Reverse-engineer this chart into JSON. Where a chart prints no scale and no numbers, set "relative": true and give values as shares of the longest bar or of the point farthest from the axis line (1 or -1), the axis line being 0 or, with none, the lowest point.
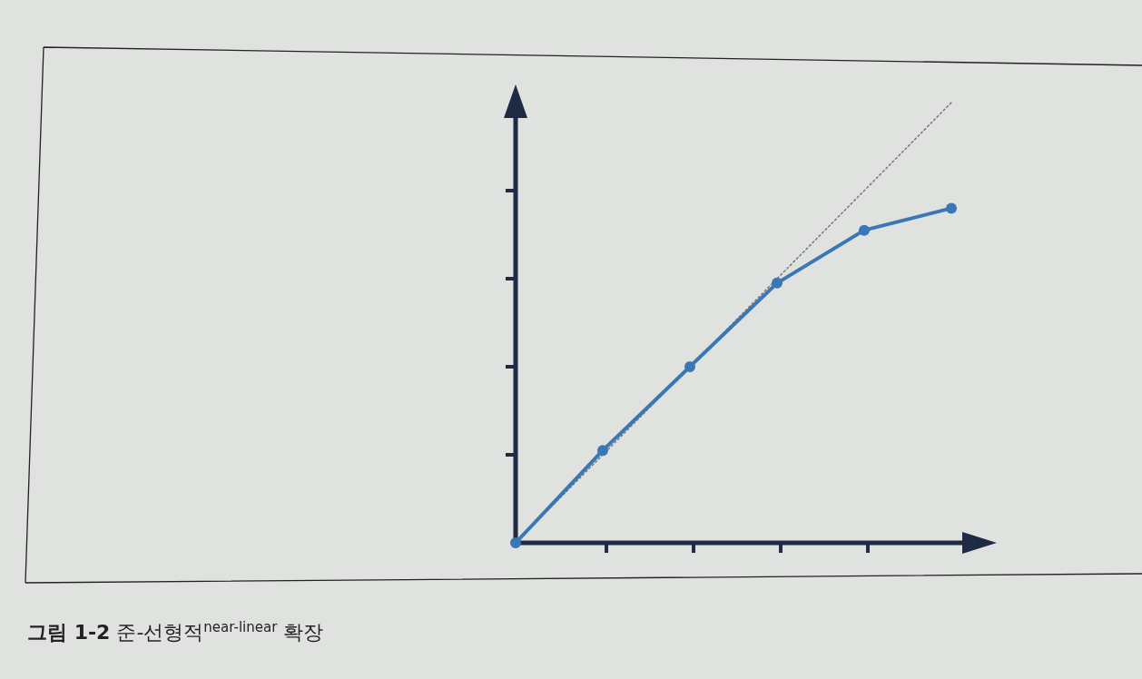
{
  "chart_data": {
    "type": "line",
    "title": "**그림 1-2** 준-선형적$^{near-linear}$ 확장",
    "categories": [
      null,
      null,
      null,
      null,
      null,
      null
    ],
    "relative": true,
    "marker": "circle",
    "line_style": "solid",
    "series": [
      {
        "color": "#3a78b5",
        "values": [
          0,
          0.21,
          0.4,
          0.59,
          0.71,
          0.76
        ]
      },
      {
        "type": "line",
        "color": "#777777",
        "line_style": "dotted",
        "marker": "none",
        "values": [
          0,
          0.2,
          0.4,
          0.6,
          0.8,
          1
        ]
      }
    ]
  }
}
